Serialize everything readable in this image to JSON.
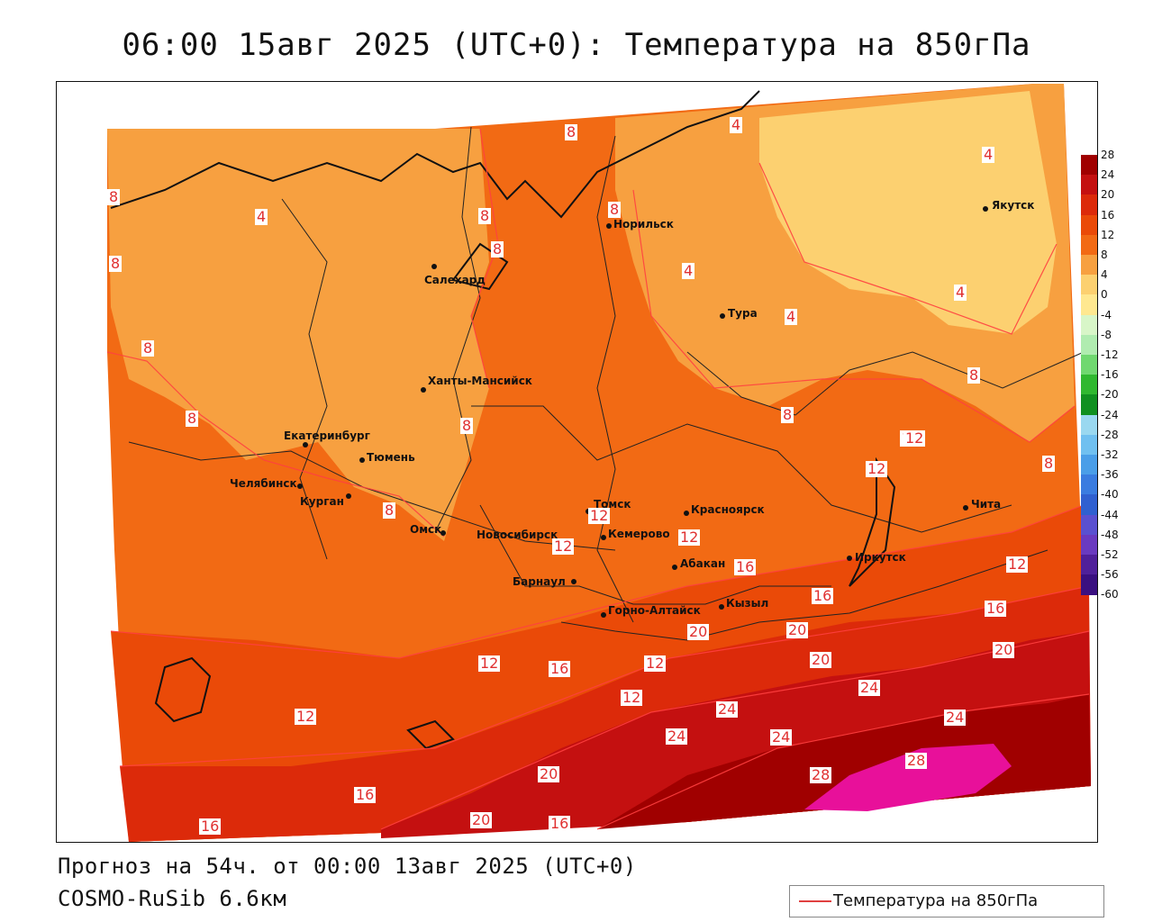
{
  "title": "06:00 15авг 2025 (UTC+0): Температура на 850гПа",
  "footer": {
    "forecast": "Прогноз на 54ч. от 00:00 13авг 2025 (UTC+0)",
    "model": "COSMO-RuSib 6.6км"
  },
  "legend": {
    "label": "Температура на 850гПа",
    "line_color": "#e04040"
  },
  "colorbar": {
    "ticks": [
      "28",
      "24",
      "20",
      "16",
      "12",
      "8",
      "4",
      "0",
      "-4",
      "-8",
      "-12",
      "-16",
      "-20",
      "-24",
      "-28",
      "-32",
      "-36",
      "-40",
      "-44",
      "-48",
      "-52",
      "-56",
      "-60"
    ],
    "colors": [
      "#a00000",
      "#c41010",
      "#dc2a0a",
      "#ea4a08",
      "#f26a14",
      "#f7a040",
      "#fcd070",
      "#ffe890",
      "#d8f6c8",
      "#b0ecb0",
      "#70d870",
      "#30b830",
      "#109020",
      "#9ad8f0",
      "#70c0f0",
      "#4a9ee8",
      "#3a7ce0",
      "#3060d0",
      "#5a50d0",
      "#6a3ac0",
      "#50209a",
      "#3a1080"
    ]
  },
  "cities": [
    {
      "name": "Норильск"
    },
    {
      "name": "Салехард"
    },
    {
      "name": "Якутск"
    },
    {
      "name": "Тура"
    },
    {
      "name": "Ханты-Мансийск"
    },
    {
      "name": "Екатеринбург"
    },
    {
      "name": "Тюмень"
    },
    {
      "name": "Челябинск"
    },
    {
      "name": "Курган"
    },
    {
      "name": "Омск"
    },
    {
      "name": "Новосибирск"
    },
    {
      "name": "Томск"
    },
    {
      "name": "Кемерово"
    },
    {
      "name": "Красноярск"
    },
    {
      "name": "Барнаул"
    },
    {
      "name": "Абакан"
    },
    {
      "name": "Горно-Алтайск"
    },
    {
      "name": "Кызыл"
    },
    {
      "name": "Иркутск"
    },
    {
      "name": "Чита"
    }
  ],
  "contour_labels": [
    "8",
    "8",
    "4",
    "8",
    "8",
    "8",
    "4",
    "4",
    "4",
    "4",
    "4",
    "8",
    "8",
    "8",
    "8",
    "8",
    "12",
    "12",
    "12",
    "12",
    "12",
    "12",
    "16",
    "16",
    "16",
    "20",
    "20",
    "20",
    "20",
    "24",
    "24",
    "24",
    "24",
    "24",
    "28",
    "28",
    "12",
    "12",
    "12",
    "16",
    "16",
    "16",
    "20",
    "16",
    "12",
    "12",
    "8",
    "20",
    "8",
    "8",
    "8"
  ]
}
